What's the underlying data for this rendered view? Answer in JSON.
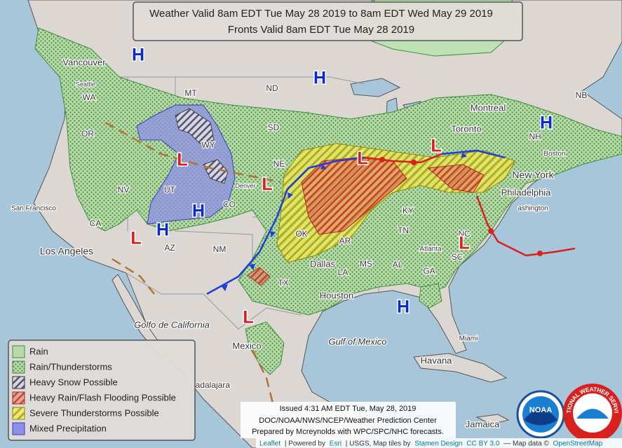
{
  "header": {
    "line1": "Weather Valid 8am EDT Tue May 28 2019 to 8am EDT Wed May 29 2019",
    "line2": "Fronts Valid 8am EDT Tue May 28 2019"
  },
  "legend": [
    "Rain",
    "Rain/Thunderstorms",
    "Heavy Snow Possible",
    "Heavy Rain/Flash Flooding Possible",
    "Severe Thunderstorms Possible",
    "Mixed Precipitation"
  ],
  "issued": [
    "Issued 4:31 AM EDT Tue, May 28, 2019",
    "DOC/NOAA/NWS/NCEP/Weather Prediction Center",
    "Prepared by Mcreynolds with WPC/SPC/NHC forecasts."
  ],
  "attribution": {
    "leaflet": "Leaflet",
    "powered": "| Powered by",
    "esri": "Esri",
    "usgs": "| USGS, Map tiles by",
    "stamen": "Stamen Design",
    "cc": "CC BY 3.0",
    "mapdata": "— Map data ©",
    "osm": "OpenStreetMap"
  },
  "logos": {
    "noaa": "NOAA",
    "nws": "NATIONAL WEATHER SERVICE"
  },
  "place_labels": [
    "Vancouver",
    "Seattle",
    "WA",
    "OR",
    "MT",
    "ND",
    "SD",
    "WY",
    "NV",
    "UT",
    "CO",
    "Denver",
    "NE",
    "CA",
    "San Francisco",
    "Los Angeles",
    "AZ",
    "NM",
    "TX",
    "OK",
    "AR",
    "LA",
    "MS",
    "AL",
    "GA",
    "TN",
    "KY",
    "NC",
    "SC",
    "Atlanta",
    "Dallas",
    "Houston",
    "Miami",
    "Havana",
    "Jamaica",
    "Montreal",
    "Toronto",
    "NB",
    "NH",
    "Boston",
    "New York",
    "Philadelphia",
    "ashington",
    "Golfo de California",
    "Gulf of Mexico",
    "Mexico",
    "uadalajara"
  ],
  "pressure_centers": [
    "H",
    "H",
    "H",
    "H",
    "H",
    "H",
    "L",
    "L",
    "L",
    "L",
    "L",
    "L",
    "L"
  ]
}
